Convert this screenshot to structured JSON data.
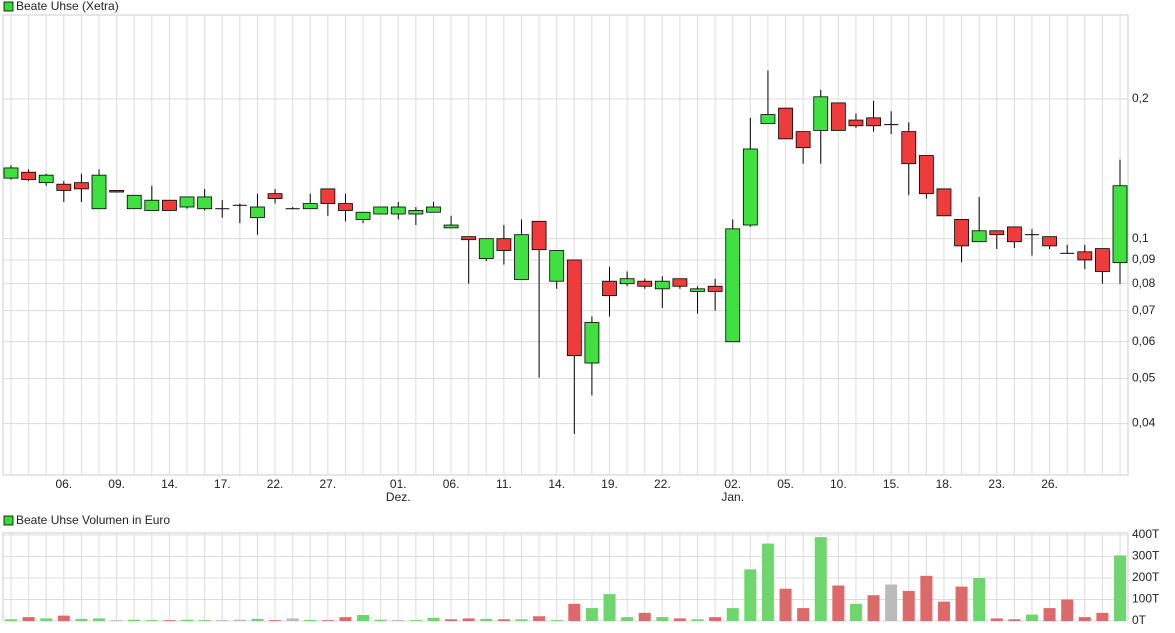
{
  "chart_data": [
    {
      "type": "candlestick",
      "title": "Beate Uhse (Xetra)",
      "legend_color": "#33dd33",
      "up_color": "#3fe03f",
      "down_color": "#ee3b3b",
      "log_scale": true,
      "grid": true,
      "categories": [
        null,
        null,
        null,
        "06.",
        null,
        null,
        "09.",
        null,
        null,
        "14.",
        null,
        null,
        "17.",
        null,
        null,
        "22.",
        null,
        null,
        "27.",
        null,
        null,
        null,
        "01.",
        null,
        null,
        "06.",
        null,
        null,
        "11.",
        null,
        null,
        "14.",
        null,
        null,
        "19.",
        null,
        null,
        "22.",
        null,
        null,
        null,
        "02.",
        null,
        null,
        "05.",
        null,
        null,
        "10.",
        null,
        null,
        "15.",
        null,
        null,
        "18.",
        null,
        null,
        "23.",
        null,
        null,
        "26.",
        null,
        null,
        null,
        null
      ],
      "months": [
        null,
        null,
        null,
        null,
        null,
        null,
        null,
        null,
        null,
        null,
        null,
        null,
        null,
        null,
        null,
        null,
        null,
        null,
        null,
        null,
        null,
        null,
        "Dez.",
        null,
        null,
        null,
        null,
        null,
        null,
        null,
        null,
        null,
        null,
        null,
        null,
        null,
        null,
        null,
        null,
        null,
        null,
        "Jan.",
        null,
        null,
        null,
        null,
        null,
        null,
        null,
        null,
        null,
        null,
        null,
        null,
        null,
        null,
        null,
        null,
        null,
        null,
        null,
        null,
        null,
        null
      ],
      "open": [
        0.135,
        0.139,
        0.132,
        0.131,
        0.132,
        0.116,
        0.127,
        0.116,
        0.115,
        0.121,
        0.117,
        0.116,
        0.116,
        0.118,
        0.111,
        0.125,
        0.116,
        0.116,
        0.128,
        0.119,
        0.11,
        0.113,
        0.113,
        0.113,
        0.114,
        0.1055,
        0.101,
        0.0906,
        0.1,
        0.0817,
        0.109,
        0.081,
        0.09,
        0.054,
        0.081,
        0.08,
        0.081,
        0.078,
        0.082,
        0.077,
        0.079,
        0.06,
        0.107,
        0.177,
        0.191,
        0.17,
        0.171,
        0.196,
        0.18,
        0.182,
        0.176,
        0.17,
        0.151,
        0.128,
        0.11,
        0.0985,
        0.104,
        0.106,
        0.102,
        0.101,
        0.093,
        0.0937,
        0.0952,
        0.0888
      ],
      "high": [
        0.144,
        0.141,
        0.138,
        0.133,
        0.138,
        0.141,
        0.127,
        0.124,
        0.13,
        0.121,
        0.123,
        0.128,
        0.121,
        0.119,
        0.125,
        0.128,
        0.117,
        0.125,
        0.128,
        0.125,
        0.114,
        0.117,
        0.12,
        0.117,
        0.12,
        0.112,
        0.101,
        0.1,
        0.107,
        0.11,
        0.109,
        0.0943,
        0.09,
        0.068,
        0.087,
        0.085,
        0.082,
        0.083,
        0.082,
        0.079,
        0.082,
        0.11,
        0.182,
        0.23,
        0.191,
        0.17,
        0.209,
        0.196,
        0.186,
        0.198,
        0.188,
        0.178,
        0.151,
        0.128,
        0.11,
        0.123,
        0.104,
        0.106,
        0.105,
        0.101,
        0.097,
        0.097,
        0.0952,
        0.148
      ],
      "low": [
        0.134,
        0.133,
        0.13,
        0.12,
        0.12,
        0.116,
        0.126,
        0.116,
        0.115,
        0.115,
        0.116,
        0.115,
        0.111,
        0.108,
        0.102,
        0.119,
        0.116,
        0.116,
        0.112,
        0.109,
        0.108,
        0.113,
        0.11,
        0.107,
        0.114,
        0.1055,
        0.08,
        0.0895,
        0.088,
        0.0817,
        0.0502,
        0.078,
        0.038,
        0.046,
        0.068,
        0.079,
        0.078,
        0.071,
        0.078,
        0.069,
        0.07,
        0.06,
        0.106,
        0.177,
        0.164,
        0.145,
        0.145,
        0.171,
        0.173,
        0.17,
        0.168,
        0.124,
        0.122,
        0.112,
        0.089,
        0.0985,
        0.095,
        0.0955,
        0.092,
        0.095,
        0.093,
        0.086,
        0.08,
        0.08
      ],
      "close": [
        0.142,
        0.134,
        0.137,
        0.127,
        0.128,
        0.137,
        0.126,
        0.124,
        0.121,
        0.115,
        0.123,
        0.123,
        0.116,
        0.118,
        0.117,
        0.122,
        0.116,
        0.119,
        0.119,
        0.115,
        0.114,
        0.117,
        0.117,
        0.115,
        0.117,
        0.107,
        0.0995,
        0.1,
        0.0943,
        0.102,
        0.0947,
        0.0943,
        0.056,
        0.066,
        0.0754,
        0.082,
        0.079,
        0.081,
        0.079,
        0.078,
        0.077,
        0.105,
        0.156,
        0.185,
        0.164,
        0.157,
        0.202,
        0.171,
        0.175,
        0.175,
        0.176,
        0.145,
        0.125,
        0.112,
        0.0965,
        0.104,
        0.102,
        0.0985,
        0.102,
        0.0965,
        0.093,
        0.09,
        0.085,
        0.13
      ],
      "ylim": [
        0.031,
        0.303
      ],
      "yticks": [
        {
          "value": 0.04,
          "label": "0,04"
        },
        {
          "value": 0.05,
          "label": "0,05"
        },
        {
          "value": 0.06,
          "label": "0,06"
        },
        {
          "value": 0.07,
          "label": "0,07"
        },
        {
          "value": 0.08,
          "label": "0,08"
        },
        {
          "value": 0.09,
          "label": "0,09"
        },
        {
          "value": 0.1,
          "label": "0,1"
        },
        {
          "value": 0.2,
          "label": "0,2"
        }
      ]
    },
    {
      "type": "bar",
      "title": "Beate Uhse Volumen in Euro",
      "legend_color": "#33dd33",
      "grid": true,
      "values": [
        8000,
        18000,
        12000,
        25000,
        10000,
        12000,
        4000,
        6000,
        4000,
        4000,
        6000,
        4000,
        4000,
        6000,
        10000,
        4000,
        12000,
        5000,
        4000,
        18000,
        28000,
        6000,
        5000,
        4000,
        15000,
        8000,
        12000,
        10000,
        8000,
        8000,
        22000,
        4000,
        80000,
        60000,
        125000,
        18000,
        38000,
        18000,
        12000,
        8000,
        18000,
        60000,
        240000,
        360000,
        150000,
        60000,
        390000,
        165000,
        80000,
        120000,
        170000,
        140000,
        210000,
        90000,
        160000,
        200000,
        12000,
        8000,
        30000,
        60000,
        100000,
        18000,
        38000,
        305000
      ],
      "colors": [
        "#6dd66d",
        "#dd6a6a",
        "#6dd66d",
        "#dd6a6a",
        "#6dd66d",
        "#6dd66d",
        "#bbbbbb",
        "#6dd66d",
        "#6dd66d",
        "#dd6a6a",
        "#6dd66d",
        "#6dd66d",
        "#bbbbbb",
        "#bbbbbb",
        "#6dd66d",
        "#dd6a6a",
        "#bbbbbb",
        "#6dd66d",
        "#dd6a6a",
        "#dd6a6a",
        "#6dd66d",
        "#6dd66d",
        "#bbbbbb",
        "#6dd66d",
        "#6dd66d",
        "#dd6a6a",
        "#dd6a6a",
        "#6dd66d",
        "#dd6a6a",
        "#6dd66d",
        "#dd6a6a",
        "#6dd66d",
        "#dd6a6a",
        "#6dd66d",
        "#6dd66d",
        "#6dd66d",
        "#dd6a6a",
        "#6dd66d",
        "#dd6a6a",
        "#6dd66d",
        "#dd6a6a",
        "#6dd66d",
        "#6dd66d",
        "#6dd66d",
        "#dd6a6a",
        "#dd6a6a",
        "#6dd66d",
        "#dd6a6a",
        "#6dd66d",
        "#dd6a6a",
        "#bbbbbb",
        "#dd6a6a",
        "#dd6a6a",
        "#dd6a6a",
        "#dd6a6a",
        "#6dd66d",
        "#dd6a6a",
        "#dd6a6a",
        "#6dd66d",
        "#dd6a6a",
        "#dd6a6a",
        "#dd6a6a",
        "#dd6a6a",
        "#6dd66d"
      ],
      "ylim": [
        0,
        400000
      ],
      "yticks": [
        {
          "value": 0,
          "label": "0T"
        },
        {
          "value": 100000,
          "label": "100T"
        },
        {
          "value": 200000,
          "label": "200T"
        },
        {
          "value": 300000,
          "label": "300T"
        },
        {
          "value": 400000,
          "label": "400T"
        }
      ]
    }
  ]
}
